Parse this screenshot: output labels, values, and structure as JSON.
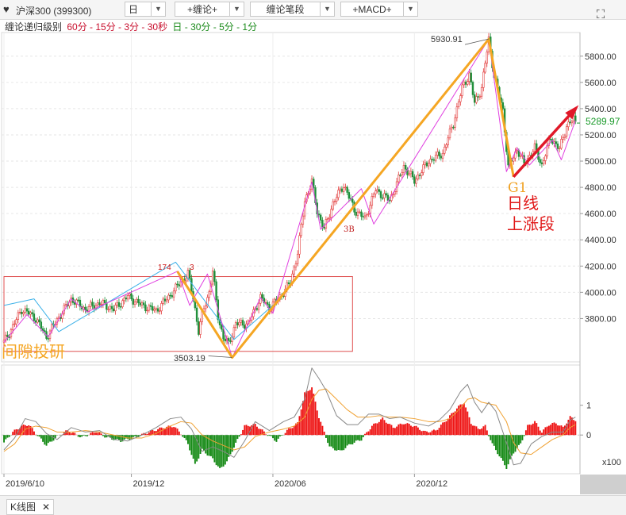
{
  "toolbar": {
    "symbol": "沪深300 (399300)",
    "period": "日",
    "chanlun": "+缠论+",
    "bipart": "缠论笔段",
    "macd": "+MACD+"
  },
  "levelbar": {
    "label": "缠论递归级别",
    "red_levels": "60分 - 15分 - 3分 - 30秒",
    "green_levels": "日 - 30分 - 5分 - 1分"
  },
  "annotations": {
    "high": "5930.91",
    "low": "3503.19",
    "mid_high": "174",
    "mid_high_suffix": "3",
    "last_price": "5289.97",
    "marker_3b": "3B",
    "g1": "G1",
    "daily_up_line1": "日线",
    "daily_up_line2": "上涨段",
    "watermark": "间隙投研"
  },
  "tabs": {
    "kline": "K线图",
    "close": "✕"
  },
  "chart_data": {
    "type": "line",
    "main": {
      "y_ticks": [
        5800,
        5600,
        5400,
        5200,
        5000,
        4800,
        4600,
        4400,
        4200,
        4000,
        3800
      ],
      "y_tick_labels": [
        "5800.00",
        "5600.00",
        "5400.00",
        "5200.00",
        "5000.00",
        "4800.00",
        "4600.00",
        "4400.00",
        "4200.00",
        "4000.00",
        "3800.00"
      ],
      "ylim": [
        3470,
        5980
      ],
      "x_ticks": [
        "2019/6/10",
        "2019/12",
        "2020/06",
        "2020/12"
      ],
      "price": [
        [
          0,
          3620
        ],
        [
          5,
          3740
        ],
        [
          10,
          3870
        ],
        [
          13,
          3850
        ],
        [
          18,
          3800
        ],
        [
          24,
          3660
        ],
        [
          30,
          3790
        ],
        [
          38,
          3950
        ],
        [
          46,
          3870
        ],
        [
          54,
          3920
        ],
        [
          62,
          3870
        ],
        [
          70,
          3970
        ],
        [
          78,
          3900
        ],
        [
          86,
          3860
        ],
        [
          94,
          3980
        ],
        [
          100,
          4080
        ],
        [
          104,
          4140
        ],
        [
          107,
          3960
        ],
        [
          110,
          3700
        ],
        [
          113,
          3880
        ],
        [
          116,
          4000
        ],
        [
          118,
          4160
        ],
        [
          121,
          3820
        ],
        [
          124,
          3650
        ],
        [
          127,
          3610
        ],
        [
          131,
          3760
        ],
        [
          138,
          3760
        ],
        [
          145,
          3960
        ],
        [
          150,
          3880
        ],
        [
          155,
          3950
        ],
        [
          158,
          4000
        ],
        [
          162,
          4080
        ],
        [
          166,
          4300
        ],
        [
          170,
          4700
        ],
        [
          174,
          4840
        ],
        [
          177,
          4620
        ],
        [
          181,
          4480
        ],
        [
          186,
          4680
        ],
        [
          192,
          4820
        ],
        [
          198,
          4630
        ],
        [
          204,
          4560
        ],
        [
          210,
          4780
        ],
        [
          218,
          4700
        ],
        [
          226,
          4960
        ],
        [
          232,
          4850
        ],
        [
          240,
          5000
        ],
        [
          248,
          5060
        ],
        [
          254,
          5290
        ],
        [
          259,
          5560
        ],
        [
          263,
          5660
        ],
        [
          266,
          5440
        ],
        [
          270,
          5560
        ],
        [
          274,
          5930
        ],
        [
          277,
          5650
        ],
        [
          282,
          5390
        ],
        [
          285,
          4950
        ],
        [
          290,
          5090
        ],
        [
          294,
          4980
        ],
        [
          300,
          5100
        ],
        [
          304,
          4970
        ],
        [
          309,
          5180
        ],
        [
          314,
          5090
        ],
        [
          318,
          5270
        ],
        [
          322,
          5320
        ],
        [
          323,
          5290
        ]
      ],
      "bi_pink": [
        [
          0,
          3620
        ],
        [
          13,
          3830
        ],
        [
          25,
          3660
        ],
        [
          38,
          3950
        ],
        [
          47,
          3850
        ],
        [
          98,
          4160
        ],
        [
          105,
          3900
        ],
        [
          115,
          4140
        ],
        [
          129,
          3503
        ],
        [
          145,
          3960
        ],
        [
          152,
          3840
        ],
        [
          174,
          4840
        ],
        [
          179,
          4480
        ],
        [
          202,
          4790
        ],
        [
          209,
          4520
        ],
        [
          274,
          5930
        ],
        [
          284,
          4920
        ],
        [
          290,
          5100
        ],
        [
          297,
          4970
        ],
        [
          310,
          5160
        ],
        [
          315,
          5010
        ],
        [
          323,
          5310
        ]
      ],
      "bi_blue": [
        [
          0,
          3900
        ],
        [
          17,
          3950
        ],
        [
          31,
          3700
        ],
        [
          97,
          4230
        ],
        [
          130,
          3640
        ],
        [
          157,
          3960
        ]
      ],
      "segment_orange": [
        [
          98,
          4160
        ],
        [
          129,
          3503
        ],
        [
          274,
          5930
        ],
        [
          288,
          4880
        ]
      ],
      "up_arrow": [
        [
          288,
          4880
        ],
        [
          323,
          5400
        ]
      ],
      "box": {
        "x0": 0,
        "x1": 197,
        "y0": 3550,
        "y1": 4120
      },
      "last_price": 5289.97,
      "high": 5930.91,
      "low": 3503.19
    },
    "macd": {
      "y_ticks": [
        1,
        0
      ],
      "unit": "x100",
      "ylim": [
        -1.3,
        2.35
      ],
      "hist": [
        [
          0,
          -0.25
        ],
        [
          5,
          0.1
        ],
        [
          10,
          0.3
        ],
        [
          14,
          0.35
        ],
        [
          18,
          0.05
        ],
        [
          24,
          -0.35
        ],
        [
          30,
          -0.05
        ],
        [
          36,
          0.15
        ],
        [
          44,
          -0.08
        ],
        [
          52,
          0.12
        ],
        [
          58,
          -0.08
        ],
        [
          66,
          -0.2
        ],
        [
          74,
          -0.08
        ],
        [
          82,
          0.1
        ],
        [
          90,
          0.25
        ],
        [
          96,
          0.3
        ],
        [
          100,
          0.05
        ],
        [
          104,
          -0.3
        ],
        [
          108,
          -1.0
        ],
        [
          112,
          -0.5
        ],
        [
          118,
          -0.8
        ],
        [
          122,
          -1.15
        ],
        [
          126,
          -0.9
        ],
        [
          130,
          -0.4
        ],
        [
          136,
          0.3
        ],
        [
          142,
          0.35
        ],
        [
          148,
          0.05
        ],
        [
          154,
          -0.2
        ],
        [
          160,
          0.15
        ],
        [
          166,
          0.4
        ],
        [
          170,
          1.4
        ],
        [
          174,
          1.6
        ],
        [
          178,
          0.6
        ],
        [
          184,
          -0.4
        ],
        [
          190,
          -0.55
        ],
        [
          196,
          -0.3
        ],
        [
          202,
          -0.15
        ],
        [
          208,
          0.3
        ],
        [
          214,
          0.55
        ],
        [
          220,
          0.25
        ],
        [
          226,
          0.4
        ],
        [
          232,
          0.3
        ],
        [
          238,
          0.1
        ],
        [
          244,
          0.15
        ],
        [
          250,
          0.5
        ],
        [
          256,
          0.9
        ],
        [
          260,
          1.1
        ],
        [
          264,
          0.4
        ],
        [
          268,
          0.2
        ],
        [
          272,
          0.3
        ],
        [
          276,
          -0.3
        ],
        [
          280,
          -0.7
        ],
        [
          284,
          -1.1
        ],
        [
          288,
          -0.6
        ],
        [
          292,
          -0.3
        ],
        [
          296,
          0.3
        ],
        [
          300,
          0.45
        ],
        [
          304,
          0.1
        ],
        [
          308,
          0.35
        ],
        [
          312,
          0.4
        ],
        [
          316,
          0.25
        ],
        [
          320,
          0.6
        ],
        [
          323,
          0.5
        ]
      ],
      "dif": [
        [
          0,
          -0.5
        ],
        [
          6,
          -0.1
        ],
        [
          12,
          0.55
        ],
        [
          18,
          0.45
        ],
        [
          24,
          0.05
        ],
        [
          30,
          -0.15
        ],
        [
          38,
          0.25
        ],
        [
          46,
          0.1
        ],
        [
          54,
          0.15
        ],
        [
          62,
          -0.15
        ],
        [
          70,
          -0.2
        ],
        [
          78,
          0.0
        ],
        [
          86,
          0.25
        ],
        [
          94,
          0.55
        ],
        [
          100,
          0.6
        ],
        [
          106,
          0.2
        ],
        [
          112,
          -0.55
        ],
        [
          118,
          -0.4
        ],
        [
          124,
          -0.55
        ],
        [
          130,
          -0.75
        ],
        [
          136,
          -0.2
        ],
        [
          142,
          0.45
        ],
        [
          150,
          0.15
        ],
        [
          158,
          0.45
        ],
        [
          164,
          0.6
        ],
        [
          170,
          1.2
        ],
        [
          174,
          2.25
        ],
        [
          178,
          1.9
        ],
        [
          182,
          1.5
        ],
        [
          188,
          0.65
        ],
        [
          194,
          0.35
        ],
        [
          200,
          0.35
        ],
        [
          206,
          0.7
        ],
        [
          212,
          0.7
        ],
        [
          218,
          0.55
        ],
        [
          224,
          0.6
        ],
        [
          232,
          0.4
        ],
        [
          240,
          0.3
        ],
        [
          246,
          0.5
        ],
        [
          252,
          0.85
        ],
        [
          258,
          1.45
        ],
        [
          262,
          1.7
        ],
        [
          266,
          1.1
        ],
        [
          270,
          0.75
        ],
        [
          274,
          1.1
        ],
        [
          278,
          0.8
        ],
        [
          284,
          -0.25
        ],
        [
          288,
          -1.0
        ],
        [
          292,
          -0.95
        ],
        [
          298,
          -0.3
        ],
        [
          304,
          -0.05
        ],
        [
          310,
          0.1
        ],
        [
          316,
          0.1
        ],
        [
          320,
          0.5
        ],
        [
          323,
          0.6
        ]
      ],
      "dea": [
        [
          0,
          -0.55
        ],
        [
          6,
          -0.3
        ],
        [
          12,
          0.2
        ],
        [
          18,
          0.3
        ],
        [
          24,
          0.25
        ],
        [
          30,
          0.1
        ],
        [
          38,
          0.1
        ],
        [
          46,
          0.15
        ],
        [
          54,
          0.1
        ],
        [
          62,
          0.0
        ],
        [
          70,
          -0.1
        ],
        [
          78,
          -0.1
        ],
        [
          86,
          0.05
        ],
        [
          94,
          0.3
        ],
        [
          100,
          0.45
        ],
        [
          106,
          0.4
        ],
        [
          112,
          0.0
        ],
        [
          118,
          -0.2
        ],
        [
          124,
          -0.35
        ],
        [
          130,
          -0.5
        ],
        [
          136,
          -0.4
        ],
        [
          142,
          -0.05
        ],
        [
          150,
          0.1
        ],
        [
          158,
          0.2
        ],
        [
          164,
          0.3
        ],
        [
          170,
          0.6
        ],
        [
          174,
          1.2
        ],
        [
          178,
          1.5
        ],
        [
          182,
          1.55
        ],
        [
          188,
          1.2
        ],
        [
          194,
          0.85
        ],
        [
          200,
          0.6
        ],
        [
          206,
          0.6
        ],
        [
          212,
          0.65
        ],
        [
          218,
          0.6
        ],
        [
          224,
          0.6
        ],
        [
          232,
          0.55
        ],
        [
          240,
          0.45
        ],
        [
          246,
          0.45
        ],
        [
          252,
          0.55
        ],
        [
          258,
          0.9
        ],
        [
          262,
          1.2
        ],
        [
          266,
          1.25
        ],
        [
          270,
          1.1
        ],
        [
          274,
          1.05
        ],
        [
          278,
          1.0
        ],
        [
          284,
          0.45
        ],
        [
          288,
          -0.25
        ],
        [
          292,
          -0.6
        ],
        [
          298,
          -0.65
        ],
        [
          304,
          -0.4
        ],
        [
          310,
          -0.15
        ],
        [
          316,
          0.0
        ],
        [
          320,
          0.25
        ],
        [
          323,
          0.35
        ]
      ]
    }
  }
}
